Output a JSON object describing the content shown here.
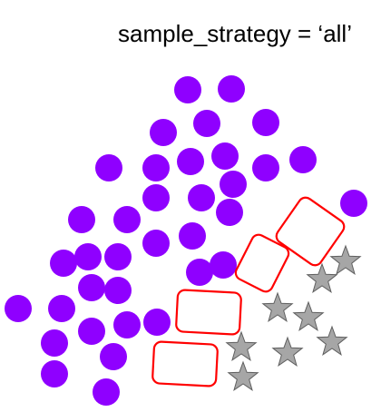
{
  "title": "sample_strategy = ‘all’",
  "colors": {
    "circle": "#8f00ff",
    "star": "#a6a6a6",
    "box": "#ff0000"
  },
  "icons": {
    "circle": "purple-circle-icon",
    "star": "gray-star-icon",
    "box": "red-rounded-square-outline"
  }
}
